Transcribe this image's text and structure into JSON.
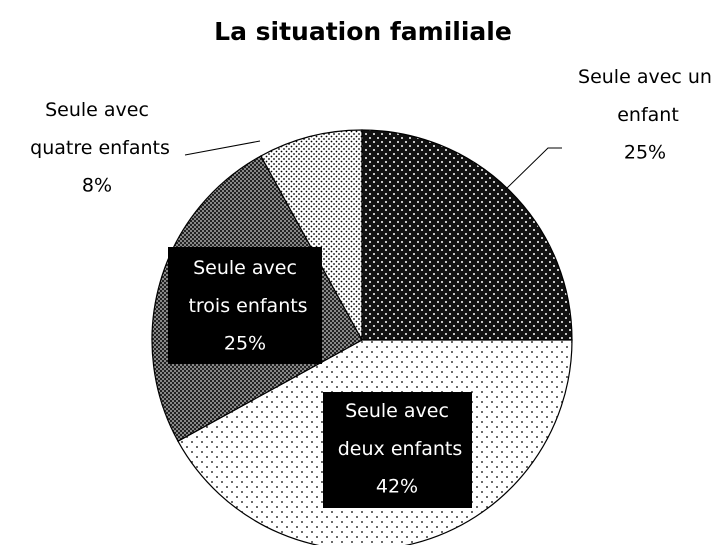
{
  "chart_data": {
    "type": "pie",
    "title": "La situation familiale",
    "categories": [
      "Seule avec un enfant",
      "Seule avec deux enfants",
      "Seule avec trois enfants",
      "Seule avec quatre enfants"
    ],
    "values": [
      25,
      42,
      25,
      8
    ],
    "value_labels": [
      "25%",
      "42%",
      "25%",
      "8%"
    ]
  }
}
